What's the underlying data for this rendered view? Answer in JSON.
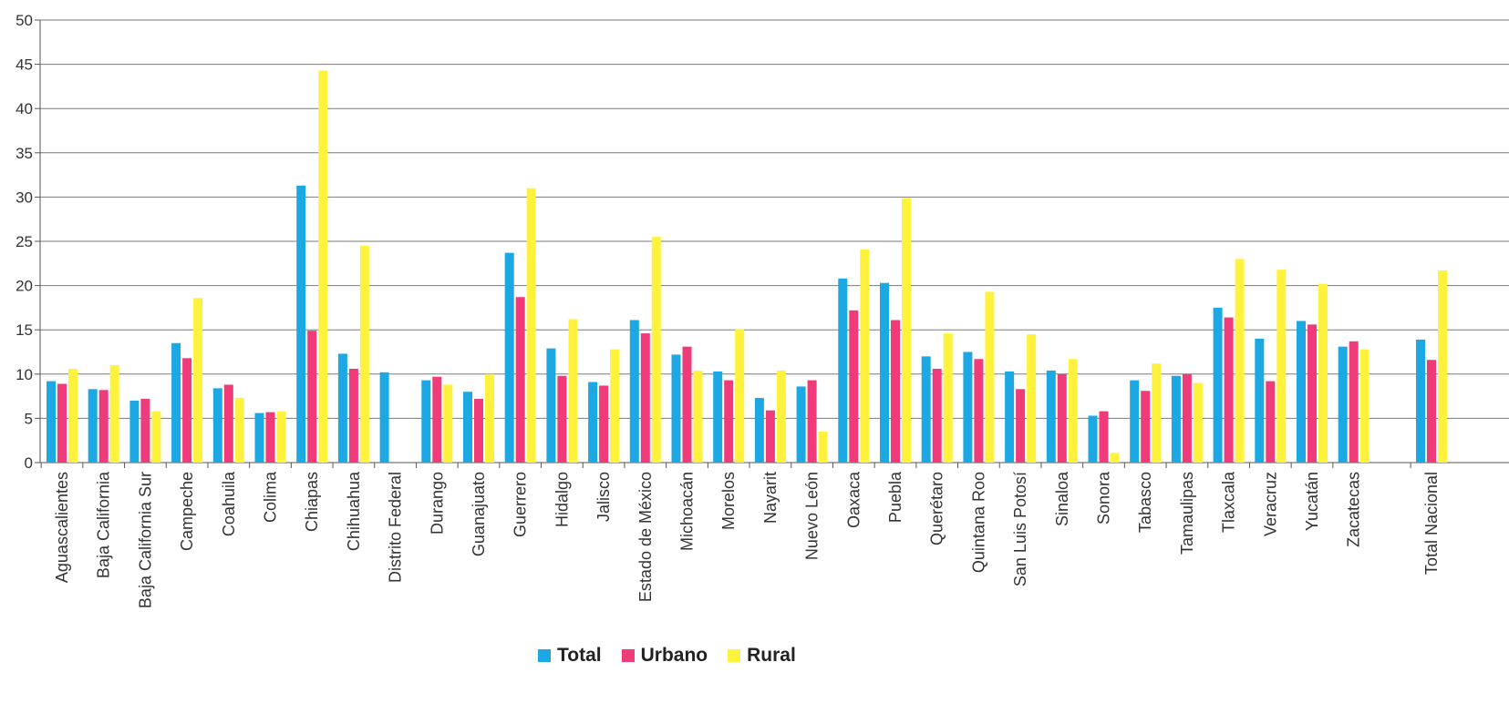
{
  "chart_data": {
    "type": "bar",
    "title": "",
    "xlabel": "",
    "ylabel": "",
    "ylim": [
      0,
      50
    ],
    "yticks": [
      "0",
      "5",
      "10",
      "15",
      "20",
      "25",
      "30",
      "35",
      "40",
      "45",
      "50"
    ],
    "grid": true,
    "legend_position": "bottom",
    "categories": [
      "Aguascalientes",
      "Baja California",
      "Baja California Sur",
      "Campeche",
      "Coahuila",
      "Colima",
      "Chiapas",
      "Chihuahua",
      "Distrito Federal",
      "Durango",
      "Guanajuato",
      "Guerrero",
      "Hidalgo",
      "Jalisco",
      "Estado de México",
      "Michoacán",
      "Morelos",
      "Nayarit",
      "Nuevo León",
      "Oaxaca",
      "Puebla",
      "Querétaro",
      "Quintana Roo",
      "San Luis Potosí",
      "Sinaloa",
      "Sonora",
      "Tabasco",
      "Tamaulipas",
      "Tlaxcala",
      "Veracruz",
      "Yucatán",
      "Zacatecas",
      "Total Nacional"
    ],
    "series": [
      {
        "name": "Total",
        "color": "#1ca8e3",
        "values": [
          9.2,
          8.3,
          7.0,
          13.5,
          8.4,
          5.6,
          31.3,
          12.3,
          10.2,
          9.3,
          8.0,
          23.7,
          12.9,
          9.1,
          16.1,
          12.2,
          10.3,
          7.3,
          8.6,
          20.8,
          20.3,
          12.0,
          12.5,
          10.3,
          10.4,
          5.3,
          9.3,
          9.8,
          17.5,
          14.0,
          16.0,
          13.1,
          13.9
        ]
      },
      {
        "name": "Urbano",
        "color": "#ef3b7a",
        "values": [
          8.9,
          8.2,
          7.2,
          11.8,
          8.8,
          5.7,
          14.9,
          10.6,
          null,
          9.7,
          7.2,
          18.7,
          9.8,
          8.7,
          14.6,
          13.1,
          9.3,
          5.9,
          9.3,
          17.2,
          16.1,
          10.6,
          11.7,
          8.3,
          10.0,
          5.8,
          8.1,
          10.0,
          16.4,
          9.2,
          15.6,
          13.7,
          11.6
        ]
      },
      {
        "name": "Rural",
        "color": "#fff23c",
        "values": [
          10.6,
          11.0,
          5.8,
          18.6,
          7.3,
          5.8,
          44.3,
          24.5,
          null,
          8.8,
          10.0,
          31.0,
          16.2,
          12.8,
          25.5,
          10.4,
          15.1,
          10.4,
          3.5,
          24.1,
          29.9,
          14.6,
          19.3,
          14.5,
          11.7,
          1.1,
          11.2,
          9.0,
          23.0,
          21.8,
          20.2,
          12.8,
          21.7
        ]
      }
    ]
  },
  "legend": {
    "total_label": "Total",
    "urbano_label": "Urbano",
    "rural_label": "Rural"
  }
}
